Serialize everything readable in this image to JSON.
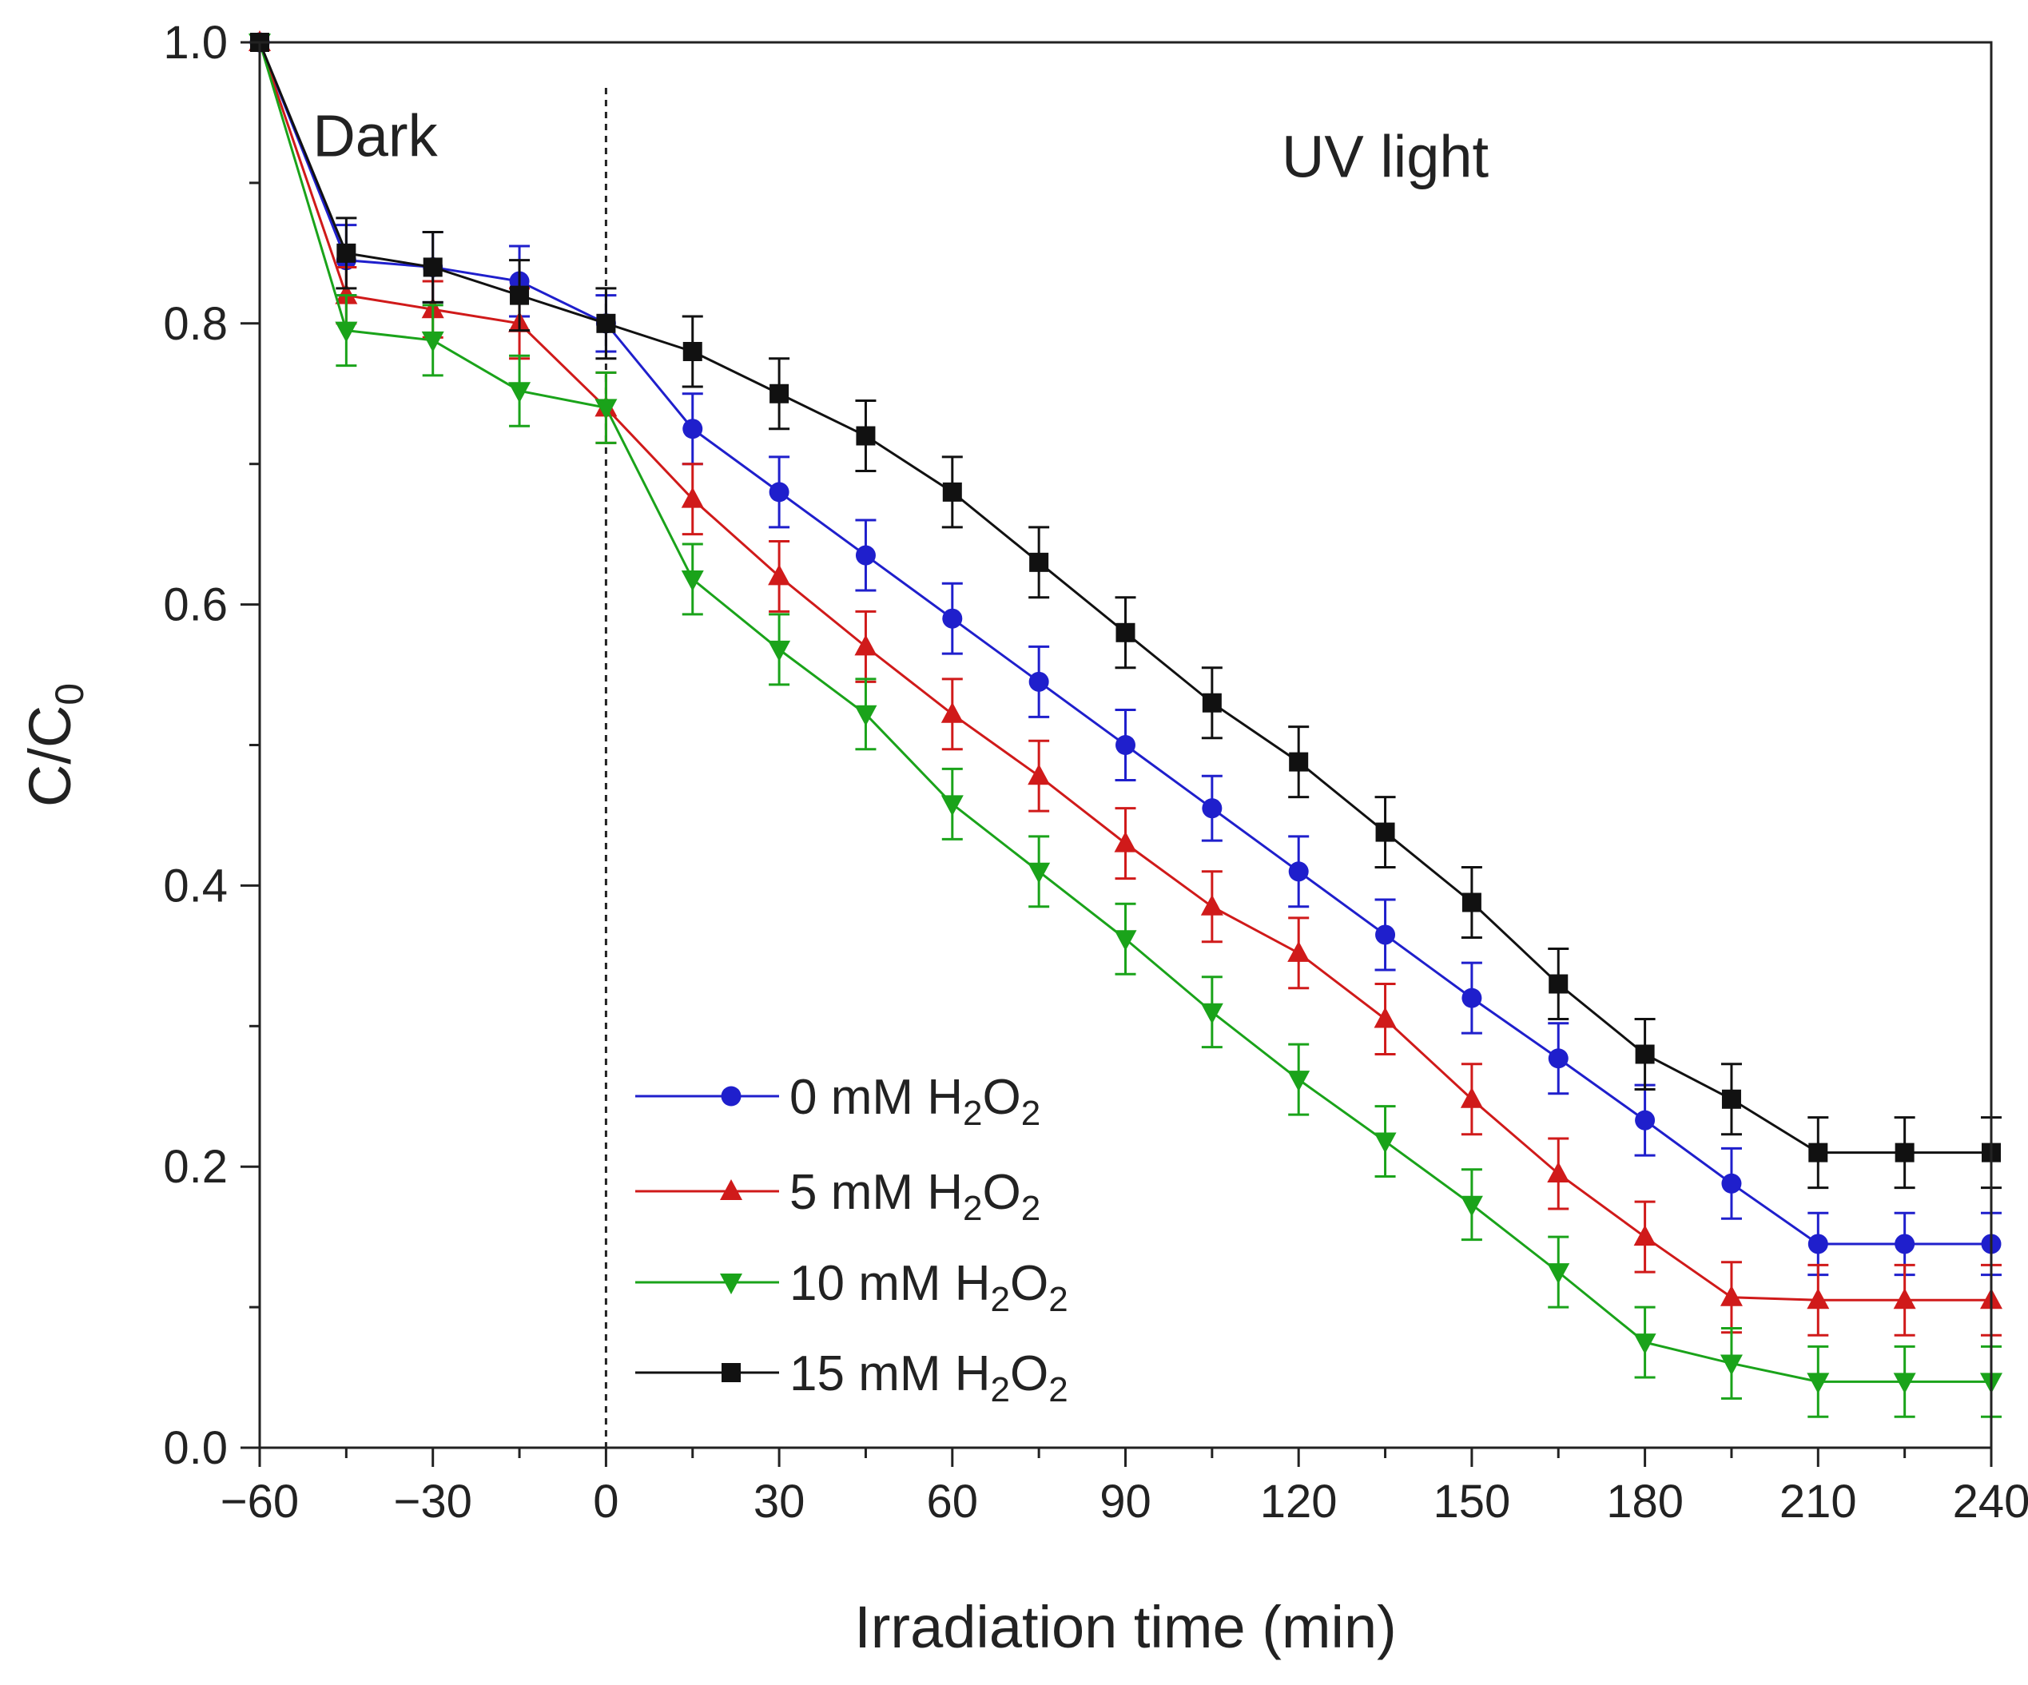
{
  "chart_data": {
    "type": "line",
    "title": "",
    "xlabel": "Irradiation time (min)",
    "ylabel": {
      "main": "C/C",
      "sub": "0"
    },
    "xlim": [
      -60,
      240
    ],
    "ylim": [
      0.0,
      1.0
    ],
    "xticks": [
      -60,
      -30,
      0,
      30,
      60,
      90,
      120,
      150,
      180,
      210,
      240
    ],
    "xtick_labels": [
      "−60",
      "−30",
      "0",
      "30",
      "60",
      "90",
      "120",
      "150",
      "180",
      "210",
      "240"
    ],
    "yticks": [
      0.0,
      0.2,
      0.4,
      0.6,
      0.8,
      1.0
    ],
    "ytick_labels": [
      "0.0",
      "0.2",
      "0.4",
      "0.6",
      "0.8",
      "1.0"
    ],
    "annotations": [
      {
        "text": "Dark",
        "x": -40,
        "y": 0.935
      },
      {
        "text": "UV light",
        "x": 135,
        "y": 0.92
      }
    ],
    "divider_x": 0,
    "legend_position": "bottom-center",
    "x": [
      -60,
      -45,
      -30,
      -15,
      0,
      15,
      30,
      45,
      60,
      75,
      90,
      105,
      120,
      135,
      150,
      165,
      180,
      195,
      210,
      225,
      240
    ],
    "series": [
      {
        "name": "0 mM H2O2",
        "label_parts": [
          "0 mM H",
          "2",
          "O",
          "2"
        ],
        "color": "#1f1fcc",
        "marker": "circle",
        "values": [
          1.0,
          0.845,
          0.84,
          0.83,
          0.8,
          0.725,
          0.68,
          0.635,
          0.59,
          0.545,
          0.5,
          0.455,
          0.41,
          0.365,
          0.32,
          0.277,
          0.233,
          0.188,
          0.145,
          0.145,
          0.145
        ],
        "errors": [
          0,
          0.025,
          0.025,
          0.025,
          0.02,
          0.025,
          0.025,
          0.025,
          0.025,
          0.025,
          0.025,
          0.023,
          0.025,
          0.025,
          0.025,
          0.025,
          0.025,
          0.025,
          0.022,
          0.022,
          0.022
        ]
      },
      {
        "name": "5 mM H2O2",
        "label_parts": [
          "5 mM H",
          "2",
          "O",
          "2"
        ],
        "color": "#d01a1a",
        "marker": "triangle-up",
        "values": [
          1.0,
          0.82,
          0.81,
          0.8,
          0.74,
          0.675,
          0.62,
          0.57,
          0.522,
          0.478,
          0.43,
          0.385,
          0.352,
          0.305,
          0.248,
          0.195,
          0.15,
          0.107,
          0.105,
          0.105,
          0.105
        ],
        "errors": [
          0,
          0.02,
          0.02,
          0.025,
          0.025,
          0.025,
          0.025,
          0.025,
          0.025,
          0.025,
          0.025,
          0.025,
          0.025,
          0.025,
          0.025,
          0.025,
          0.025,
          0.025,
          0.025,
          0.025,
          0.025
        ]
      },
      {
        "name": "10 mM H2O2",
        "label_parts": [
          "10 mM H",
          "2",
          "O",
          "2"
        ],
        "color": "#1aa31a",
        "marker": "triangle-down",
        "values": [
          1.0,
          0.795,
          0.788,
          0.752,
          0.74,
          0.618,
          0.568,
          0.522,
          0.458,
          0.41,
          0.362,
          0.31,
          0.262,
          0.218,
          0.173,
          0.125,
          0.075,
          0.06,
          0.047,
          0.047,
          0.047
        ],
        "errors": [
          0,
          0.025,
          0.025,
          0.025,
          0.025,
          0.025,
          0.025,
          0.025,
          0.025,
          0.025,
          0.025,
          0.025,
          0.025,
          0.025,
          0.025,
          0.025,
          0.025,
          0.025,
          0.025,
          0.025,
          0.025
        ]
      },
      {
        "name": "15 mM H2O2",
        "label_parts": [
          "15 mM H",
          "2",
          "O",
          "2"
        ],
        "color": "#111111",
        "marker": "square",
        "values": [
          1.0,
          0.85,
          0.84,
          0.82,
          0.8,
          0.78,
          0.75,
          0.72,
          0.68,
          0.63,
          0.58,
          0.53,
          0.488,
          0.438,
          0.388,
          0.33,
          0.28,
          0.248,
          0.21,
          0.21,
          0.21
        ],
        "errors": [
          0,
          0.025,
          0.025,
          0.025,
          0.025,
          0.025,
          0.025,
          0.025,
          0.025,
          0.025,
          0.025,
          0.025,
          0.025,
          0.025,
          0.025,
          0.025,
          0.025,
          0.025,
          0.025,
          0.025,
          0.025
        ]
      }
    ]
  }
}
